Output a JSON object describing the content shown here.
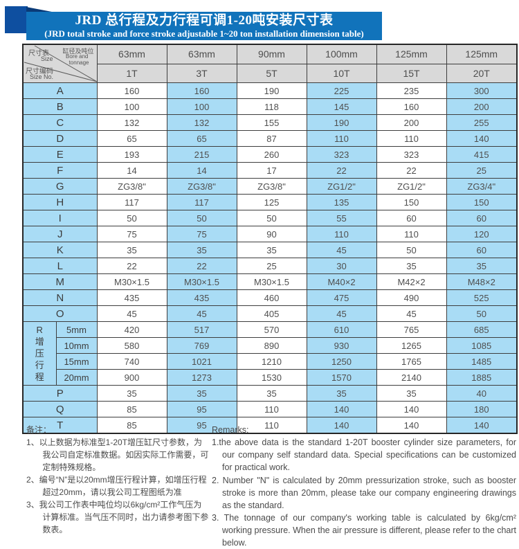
{
  "colors": {
    "banner_blue": "#1173bb",
    "dark_square_blue": "#0e4fa0",
    "cell_light_blue": "#a9dcf5",
    "header_gray": "#d9d9d9",
    "grid_line": "#3d3d3d"
  },
  "banner": {
    "title_zh": "JRD 总行程及力行程可调1-20吨安装尺寸表",
    "title_en": "(JRD total stroke and force stroke adjustable 1~20 ton installation dimension table)"
  },
  "table": {
    "corner": {
      "size_zh": "尺寸表",
      "size_en": "Size",
      "bore_zh": "缸径及吨位",
      "bore_en_1": "Bore and",
      "bore_en_2": "tonnage",
      "code_zh": "尺寸编码",
      "code_en": "Size No."
    },
    "columns": [
      {
        "bore": "63mm",
        "tonnage": "1T"
      },
      {
        "bore": "63mm",
        "tonnage": "3T"
      },
      {
        "bore": "90mm",
        "tonnage": "5T"
      },
      {
        "bore": "100mm",
        "tonnage": "10T"
      },
      {
        "bore": "125mm",
        "tonnage": "15T"
      },
      {
        "bore": "125mm",
        "tonnage": "20T"
      }
    ],
    "rows": [
      {
        "type": "simple",
        "label": "A",
        "values": [
          "160",
          "160",
          "190",
          "225",
          "235",
          "300"
        ]
      },
      {
        "type": "simple",
        "label": "B",
        "values": [
          "100",
          "100",
          "118",
          "145",
          "160",
          "200"
        ]
      },
      {
        "type": "simple",
        "label": "C",
        "values": [
          "132",
          "132",
          "155",
          "190",
          "200",
          "255"
        ]
      },
      {
        "type": "simple",
        "label": "D",
        "values": [
          "65",
          "65",
          "87",
          "110",
          "110",
          "140"
        ]
      },
      {
        "type": "simple",
        "label": "E",
        "values": [
          "193",
          "215",
          "260",
          "323",
          "323",
          "415"
        ]
      },
      {
        "type": "simple",
        "label": "F",
        "values": [
          "14",
          "14",
          "17",
          "22",
          "22",
          "25"
        ]
      },
      {
        "type": "simple",
        "label": "G",
        "values": [
          "ZG3/8\"",
          "ZG3/8\"",
          "ZG3/8\"",
          "ZG1/2\"",
          "ZG1/2\"",
          "ZG3/4\""
        ]
      },
      {
        "type": "simple",
        "label": "H",
        "values": [
          "117",
          "117",
          "125",
          "135",
          "150",
          "150"
        ]
      },
      {
        "type": "simple",
        "label": "I",
        "values": [
          "50",
          "50",
          "50",
          "55",
          "60",
          "60"
        ]
      },
      {
        "type": "simple",
        "label": "J",
        "values": [
          "75",
          "75",
          "90",
          "110",
          "110",
          "120"
        ]
      },
      {
        "type": "simple",
        "label": "K",
        "values": [
          "35",
          "35",
          "35",
          "45",
          "50",
          "60"
        ]
      },
      {
        "type": "simple",
        "label": "L",
        "values": [
          "22",
          "22",
          "25",
          "30",
          "35",
          "35"
        ]
      },
      {
        "type": "simple",
        "label": "M",
        "values": [
          "M30×1.5",
          "M30×1.5",
          "M30×1.5",
          "M40×2",
          "M42×2",
          "M48×2"
        ]
      },
      {
        "type": "simple",
        "label": "N",
        "values": [
          "435",
          "435",
          "460",
          "475",
          "490",
          "525"
        ]
      },
      {
        "type": "simple",
        "label": "O",
        "values": [
          "45",
          "45",
          "405",
          "45",
          "45",
          "50"
        ]
      },
      {
        "type": "group",
        "label_vertical": "R增压行程",
        "subrows": [
          {
            "label": "5mm",
            "values": [
              "420",
              "517",
              "570",
              "610",
              "765",
              "685"
            ]
          },
          {
            "label": "10mm",
            "values": [
              "580",
              "769",
              "890",
              "930",
              "1265",
              "1085"
            ]
          },
          {
            "label": "15mm",
            "values": [
              "740",
              "1021",
              "1210",
              "1250",
              "1765",
              "1485"
            ]
          },
          {
            "label": "20mm",
            "values": [
              "900",
              "1273",
              "1530",
              "1570",
              "2140",
              "1885"
            ]
          }
        ]
      },
      {
        "type": "simple",
        "label": "P",
        "values": [
          "35",
          "35",
          "35",
          "35",
          "35",
          "40"
        ]
      },
      {
        "type": "simple",
        "label": "Q",
        "values": [
          "85",
          "95",
          "110",
          "140",
          "140",
          "180"
        ]
      },
      {
        "type": "simple",
        "label": "T",
        "values": [
          "85",
          "95",
          "110",
          "140",
          "140",
          "140"
        ]
      }
    ]
  },
  "notes_zh": {
    "heading": "备注：",
    "items": [
      "1、以上数据为标准型1-20T增压缸尺寸参数，为我公司自定标准数据。如因实际工作需要，可定制特殊规格。",
      "2、编号“N”是以20mm增压行程计算，如增压行程超过20mm，请以我公司工程图纸为准",
      "3、我公司工作表中吨位均以6kg/cm²工作气压为计算标准。当气压不同时，出力请参考图下参数表。"
    ]
  },
  "notes_en": {
    "heading": "Remarks:",
    "items": [
      "1.the above data is the standard 1-20T booster cylinder size parameters, for our company self standard data. Special specifications can be customized for practical work.",
      "2. Number \"N\" is calculated by 20mm pressurization stroke, such as booster stroke is more than 20mm, please take our company engineering drawings as the standard.",
      "3. The tonnage of our company's working table is calculated by 6kg/cm² working pressure. When the air pressure is different, please refer to the chart below."
    ]
  }
}
